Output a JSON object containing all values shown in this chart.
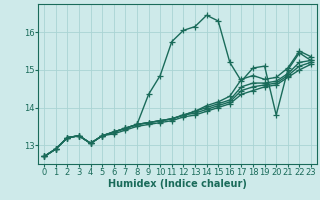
{
  "bg_color": "#ceeaea",
  "grid_color": "#aad4d4",
  "line_color": "#1a6b5a",
  "line_width": 1.0,
  "marker": "+",
  "marker_size": 4,
  "marker_edge_width": 0.9,
  "xlabel": "Humidex (Indice chaleur)",
  "xlabel_fontsize": 7,
  "xlabel_fontweight": "bold",
  "tick_fontsize": 6,
  "xlim": [
    -0.5,
    23.5
  ],
  "ylim": [
    12.5,
    16.75
  ],
  "yticks": [
    13,
    14,
    15,
    16
  ],
  "xticks": [
    0,
    1,
    2,
    3,
    4,
    5,
    6,
    7,
    8,
    9,
    10,
    11,
    12,
    13,
    14,
    15,
    16,
    17,
    18,
    19,
    20,
    21,
    22,
    23
  ],
  "lines": [
    [
      12.7,
      12.9,
      13.2,
      13.25,
      13.05,
      13.25,
      13.35,
      13.45,
      13.55,
      14.35,
      14.85,
      15.75,
      16.05,
      16.15,
      16.45,
      16.3,
      15.2,
      14.7,
      15.05,
      15.1,
      13.8,
      15.0,
      15.45,
      15.25
    ],
    [
      12.7,
      12.9,
      13.2,
      13.25,
      13.05,
      13.25,
      13.35,
      13.45,
      13.55,
      13.6,
      13.65,
      13.7,
      13.8,
      13.9,
      14.05,
      14.15,
      14.3,
      14.75,
      14.85,
      14.75,
      14.8,
      15.05,
      15.5,
      15.35
    ],
    [
      12.7,
      12.9,
      13.2,
      13.25,
      13.05,
      13.25,
      13.35,
      13.45,
      13.55,
      13.6,
      13.65,
      13.7,
      13.8,
      13.9,
      14.0,
      14.1,
      14.2,
      14.55,
      14.65,
      14.65,
      14.7,
      14.9,
      15.2,
      15.25
    ],
    [
      12.7,
      12.9,
      13.2,
      13.25,
      13.05,
      13.25,
      13.35,
      13.45,
      13.55,
      13.6,
      13.65,
      13.7,
      13.8,
      13.85,
      13.95,
      14.05,
      14.15,
      14.45,
      14.55,
      14.6,
      14.65,
      14.85,
      15.1,
      15.2
    ],
    [
      12.7,
      12.9,
      13.2,
      13.25,
      13.05,
      13.25,
      13.3,
      13.4,
      13.5,
      13.55,
      13.6,
      13.65,
      13.75,
      13.8,
      13.9,
      14.0,
      14.1,
      14.35,
      14.45,
      14.55,
      14.6,
      14.8,
      15.0,
      15.15
    ]
  ]
}
